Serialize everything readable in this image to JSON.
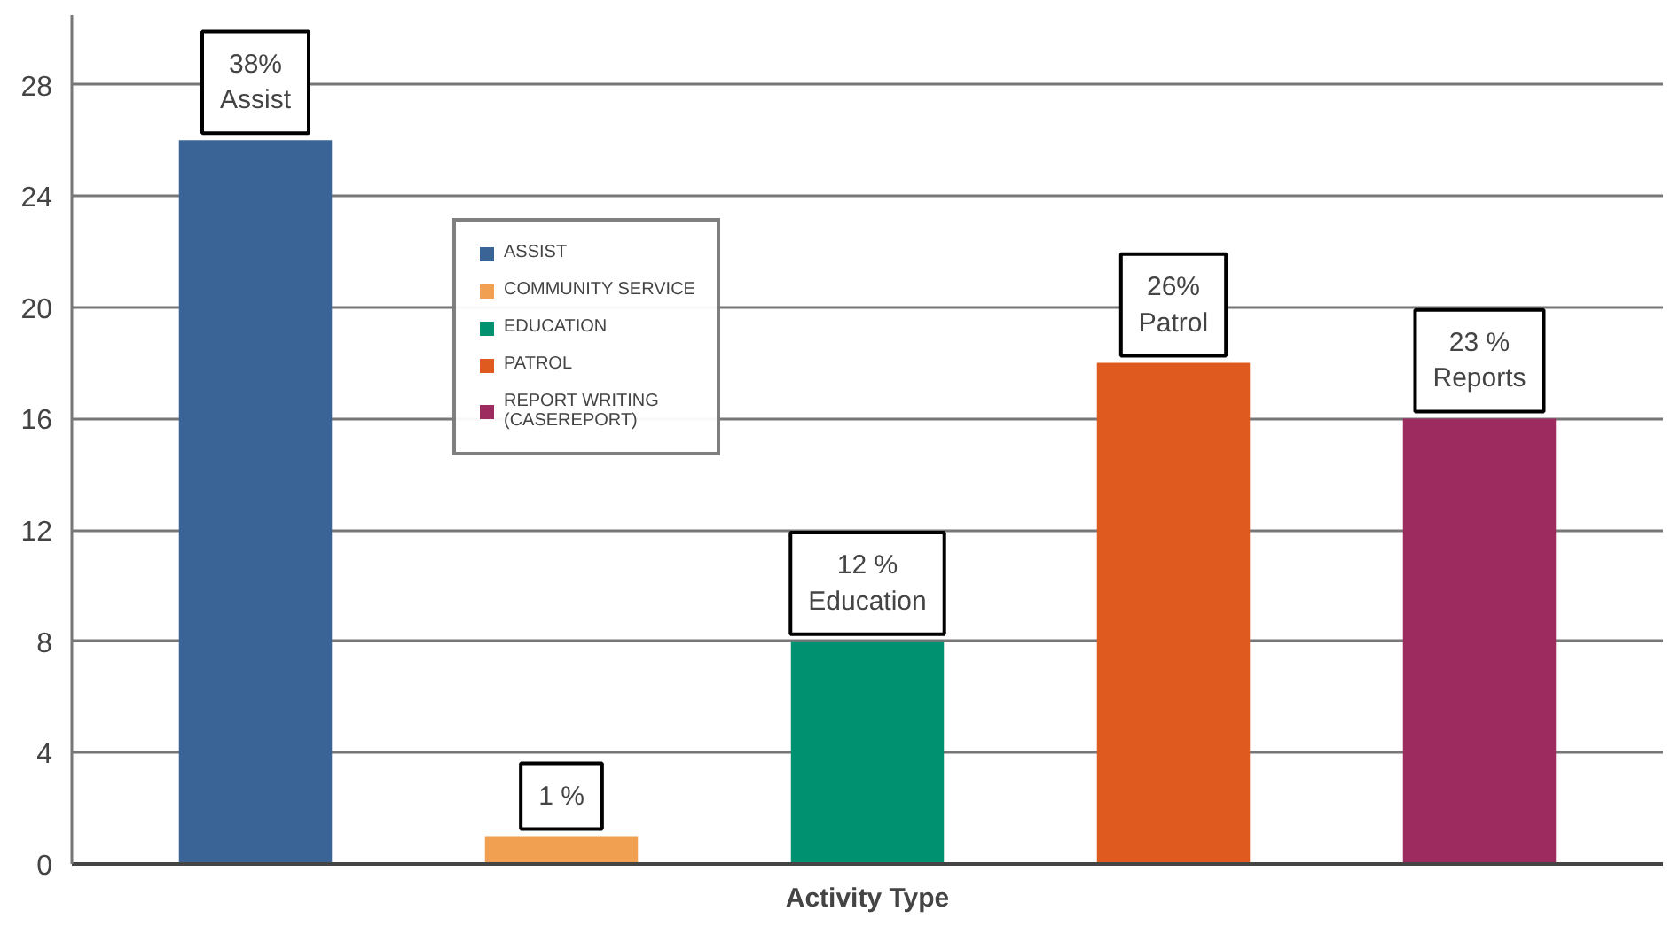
{
  "chart_data": {
    "type": "bar",
    "xlabel": "Activity Type",
    "categories": [
      null,
      null,
      null,
      null,
      null
    ],
    "series": [
      {
        "name": "ASSIST",
        "color": "#3a6496",
        "values": [
          26,
          null,
          null,
          null,
          null
        ]
      },
      {
        "name": "COMMUNITY SERVICE",
        "color": "#f0a050",
        "values": [
          null,
          1,
          null,
          null,
          null
        ]
      },
      {
        "name": "EDUCATION",
        "color": "#009270",
        "values": [
          null,
          null,
          8,
          null,
          null
        ]
      },
      {
        "name": "PATROL",
        "color": "#de5a1e",
        "values": [
          null,
          null,
          null,
          18,
          null
        ]
      },
      {
        "name": "REPORT WRITING\n(CASEREPORT)",
        "color": "#9e2b60",
        "values": [
          null,
          null,
          null,
          null,
          16
        ]
      }
    ],
    "annotations": [
      "38%\nAssist",
      "1 %",
      "12 %\nEducation",
      "26%\nPatrol",
      "23 %\nReports"
    ],
    "ylim": [
      0,
      30.5
    ],
    "yticks": [
      0,
      4,
      8,
      12,
      16,
      20,
      24,
      28
    ],
    "grid": "y",
    "legend": "top left"
  }
}
